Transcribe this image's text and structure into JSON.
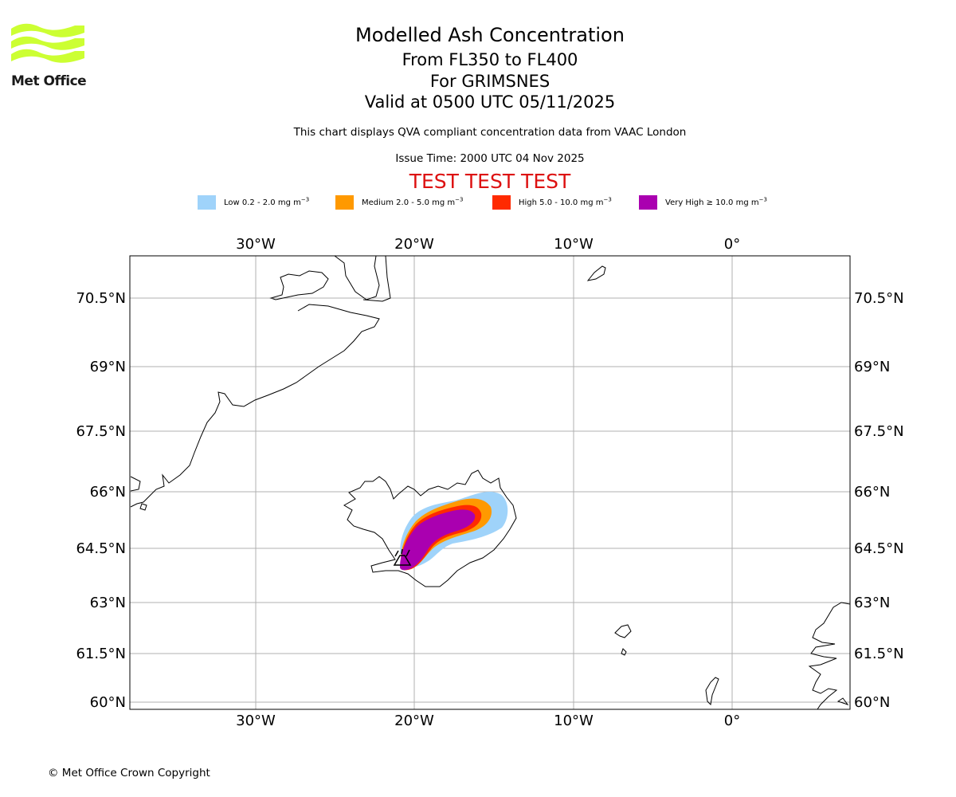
{
  "logo": {
    "text": "Met Office",
    "color": "#ccff33",
    "icon": "met-office-waves-icon"
  },
  "header": {
    "title": "Modelled Ash Concentration",
    "levels": "From FL350 to FL400",
    "volcano": "For GRIMSNES",
    "valid": "Valid at 0500 UTC 05/11/2025",
    "note": "This chart displays QVA compliant concentration data from VAAC London",
    "issue_time": "Issue Time: 2000 UTC 04 Nov 2025",
    "test_banner": "TEST TEST TEST"
  },
  "legend": [
    {
      "prefix": "Low 0.2 - 2.0 mg m",
      "exp": "−3",
      "color": "#9fd3fa"
    },
    {
      "prefix": "Medium 2.0 - 5.0 mg m",
      "exp": "−3",
      "color": "#ff9900"
    },
    {
      "prefix": "High 5.0 - 10.0 mg m",
      "exp": "−3",
      "color": "#ff2a00"
    },
    {
      "prefix": "Very High  ≥  10.0 mg m",
      "exp": "−3",
      "color": "#aa00b0"
    }
  ],
  "map": {
    "lon_labels": [
      "30°W",
      "20°W",
      "10°W",
      "0°"
    ],
    "lat_labels": [
      "70.5°N",
      "69°N",
      "67.5°N",
      "66°N",
      "64.5°N",
      "63°N",
      "61.5°N",
      "60°N"
    ],
    "gridlines": true,
    "volcano_marker": "volcano-icon"
  },
  "footer": {
    "copyright": "© Met Office Crown Copyright"
  }
}
